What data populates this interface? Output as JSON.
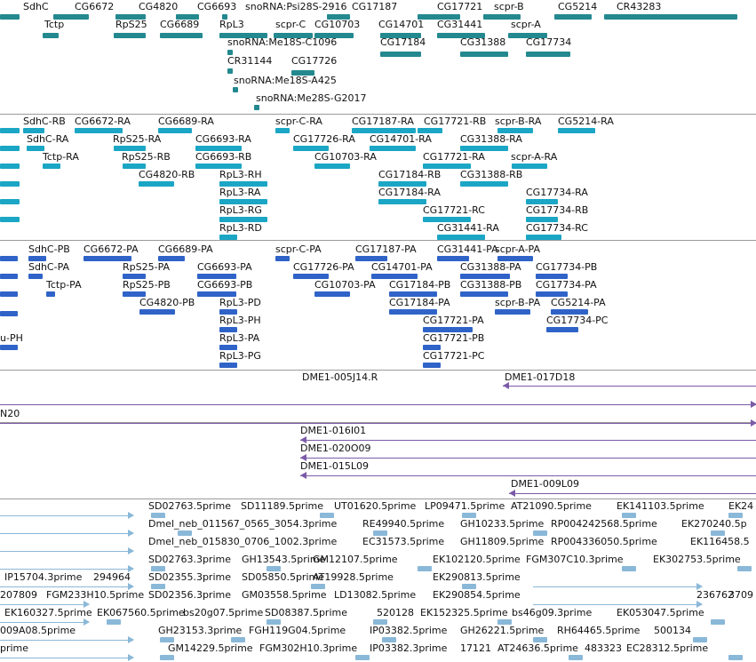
{
  "colors": {
    "gene": "#23898f",
    "mrna": "#1aa6c4",
    "cds": "#2f63c8",
    "clone": "#7b5ba8",
    "est": "#8ab8d8",
    "separator": "#9a9a9a",
    "text": "#111111"
  },
  "tracks": {
    "genes": {
      "items": [
        {
          "name": "SdhC"
        },
        {
          "name": "CG6672"
        },
        {
          "name": "CG4820"
        },
        {
          "name": "CG6693"
        },
        {
          "name": "snoRNA:Psi28S-2916"
        },
        {
          "name": "CG17187"
        },
        {
          "name": "CG17721"
        },
        {
          "name": "scpr-B"
        },
        {
          "name": "CG5214"
        },
        {
          "name": "CR43283"
        },
        {
          "name": "Tctp"
        },
        {
          "name": "RpS25"
        },
        {
          "name": "CG6689"
        },
        {
          "name": "RpL3"
        },
        {
          "name": "scpr-C"
        },
        {
          "name": "CG10703"
        },
        {
          "name": "CG14701"
        },
        {
          "name": "CG31441"
        },
        {
          "name": "scpr-A"
        },
        {
          "name": "snoRNA:Me18S-C1096"
        },
        {
          "name": "CG17184"
        },
        {
          "name": "CG31388"
        },
        {
          "name": "CG17734"
        },
        {
          "name": "CR31144"
        },
        {
          "name": "CG17726"
        },
        {
          "name": "snoRNA:Me18S-A425"
        },
        {
          "name": "snoRNA:Me28S-G2017"
        }
      ]
    },
    "transcripts": {
      "items": [
        {
          "name": "SdhC-RB"
        },
        {
          "name": "CG6672-RA"
        },
        {
          "name": "CG6689-RA"
        },
        {
          "name": "scpr-C-RA"
        },
        {
          "name": "CG17187-RA"
        },
        {
          "name": "CG17721-RB"
        },
        {
          "name": "scpr-B-RA"
        },
        {
          "name": "CG5214-RA"
        },
        {
          "name": "SdhC-RA"
        },
        {
          "name": "RpS25-RA"
        },
        {
          "name": "CG6693-RA"
        },
        {
          "name": "CG17726-RA"
        },
        {
          "name": "CG14701-RA"
        },
        {
          "name": "CG31388-RA"
        },
        {
          "name": "Tctp-RA"
        },
        {
          "name": "RpS25-RB"
        },
        {
          "name": "CG6693-RB"
        },
        {
          "name": "CG10703-RA"
        },
        {
          "name": "CG17721-RA"
        },
        {
          "name": "scpr-A-RA"
        },
        {
          "name": "CG4820-RB"
        },
        {
          "name": "RpL3-RH"
        },
        {
          "name": "CG17184-RB"
        },
        {
          "name": "CG31388-RB"
        },
        {
          "name": "RpL3-RA"
        },
        {
          "name": "CG17184-RA"
        },
        {
          "name": "CG17734-RA"
        },
        {
          "name": "RpL3-RG"
        },
        {
          "name": "CG17721-RC"
        },
        {
          "name": "CG17734-RB"
        },
        {
          "name": "RpL3-RD"
        },
        {
          "name": "CG31441-RA"
        },
        {
          "name": "CG17734-RC"
        }
      ]
    },
    "proteins": {
      "items": [
        {
          "name": "SdhC-PB"
        },
        {
          "name": "CG6672-PA"
        },
        {
          "name": "CG6689-PA"
        },
        {
          "name": "scpr-C-PA"
        },
        {
          "name": "CG17187-PA"
        },
        {
          "name": "CG31441-PA"
        },
        {
          "name": "scpr-A-PA"
        },
        {
          "name": "SdhC-PA"
        },
        {
          "name": "RpS25-PA"
        },
        {
          "name": "CG6693-PA"
        },
        {
          "name": "CG17726-PA"
        },
        {
          "name": "CG14701-PA"
        },
        {
          "name": "CG31388-PA"
        },
        {
          "name": "CG17734-PB"
        },
        {
          "name": "Tctp-PA"
        },
        {
          "name": "RpS25-PB"
        },
        {
          "name": "CG6693-PB"
        },
        {
          "name": "CG10703-PA"
        },
        {
          "name": "CG17184-PB"
        },
        {
          "name": "CG31388-PB"
        },
        {
          "name": "CG17734-PA"
        },
        {
          "name": "CG4820-PB"
        },
        {
          "name": "RpL3-PD"
        },
        {
          "name": "CG17184-PA"
        },
        {
          "name": "scpr-B-PA"
        },
        {
          "name": "CG5214-PA"
        },
        {
          "name": "RpL3-PH"
        },
        {
          "name": "CG17721-PA"
        },
        {
          "name": "CG17734-PC"
        },
        {
          "name": "u-PH"
        },
        {
          "name": "RpL3-PA"
        },
        {
          "name": "CG17721-PB"
        },
        {
          "name": "RpL3-PG"
        },
        {
          "name": "CG17721-PC"
        }
      ]
    },
    "clones_a": {
      "items": [
        {
          "name": "DME1-005J14.R"
        },
        {
          "name": "DME1-017D18"
        }
      ]
    },
    "clones_b": {
      "items": [
        {
          "name": "N20"
        },
        {
          "name": "DME1-016I01"
        },
        {
          "name": "DME1-020O09"
        },
        {
          "name": "DME1-015L09"
        },
        {
          "name": "DME1-009L09"
        }
      ]
    },
    "ests": {
      "items": [
        {
          "name": "SD02763.5prime"
        },
        {
          "name": "SD11189.5prime"
        },
        {
          "name": "UT01620.5prime"
        },
        {
          "name": "LP09471.5prime"
        },
        {
          "name": "AT21090.5prime"
        },
        {
          "name": "EK141103.5prime"
        },
        {
          "name": "EK24"
        },
        {
          "name": "Dmel_neb_011567_0565_3054.3prime"
        },
        {
          "name": "RE49940.5prime"
        },
        {
          "name": "GH10233.5prime"
        },
        {
          "name": "RP004242568.5prime"
        },
        {
          "name": "EK270240.5p"
        },
        {
          "name": "Dmel_neb_015830_0706_1002.3prime"
        },
        {
          "name": "EC31573.5prime"
        },
        {
          "name": "GH11809.5prime"
        },
        {
          "name": "RP004336050.5prime"
        },
        {
          "name": "EK116458.5"
        },
        {
          "name": "SD02763.3prime"
        },
        {
          "name": "GH13543.5prime"
        },
        {
          "name": "GM12107.5prime"
        },
        {
          "name": "EK102120.5prime"
        },
        {
          "name": "FGM307C10.3prime"
        },
        {
          "name": "EK302753.5prime"
        },
        {
          "name": "IP15704.3prime"
        },
        {
          "name": "294964"
        },
        {
          "name": "SD02355.3prime"
        },
        {
          "name": "SD05850.5prime"
        },
        {
          "name": "AT19928.5prime"
        },
        {
          "name": "EK290813.5prime"
        },
        {
          "name": "207809"
        },
        {
          "name": "FGM233H10.5prime"
        },
        {
          "name": "SD02356.3prime"
        },
        {
          "name": "GM03558.5prime"
        },
        {
          "name": "LD13082.5prime"
        },
        {
          "name": "EK290854.5prime"
        },
        {
          "name": "236762"
        },
        {
          "name": "3709"
        },
        {
          "name": "EK160327.5prime"
        },
        {
          "name": "EK067560.5prime"
        },
        {
          "name": "bs20g07.5prime"
        },
        {
          "name": "SD08387.5prime"
        },
        {
          "name": "520128"
        },
        {
          "name": "EK152325.5prime"
        },
        {
          "name": "bs46g09.3prime"
        },
        {
          "name": "EK053047.5prime"
        },
        {
          "name": "009A08.5prime"
        },
        {
          "name": "GH23153.3prime"
        },
        {
          "name": "FGH119G04.5prime"
        },
        {
          "name": "IP03382.5prime"
        },
        {
          "name": "GH26221.5prime"
        },
        {
          "name": "RH64465.5prime"
        },
        {
          "name": "500134"
        },
        {
          "name": "prime"
        },
        {
          "name": "GM14229.5prime"
        },
        {
          "name": "FGM302H10.3prime"
        },
        {
          "name": "IP03382.3prime"
        },
        {
          "name": "17121"
        },
        {
          "name": "AT24636.5prime"
        },
        {
          "name": "483323"
        },
        {
          "name": "EC28312.5prime"
        }
      ]
    }
  }
}
